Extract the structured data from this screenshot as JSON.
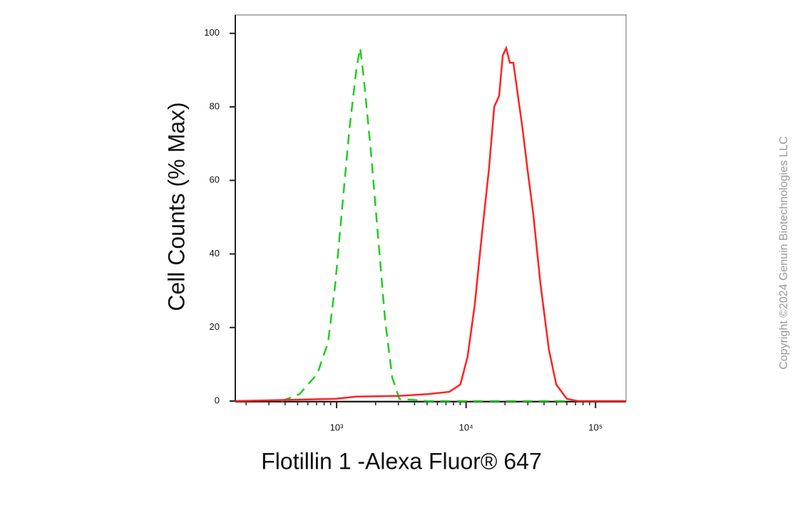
{
  "chart_data": {
    "type": "line",
    "x_label": "Flotillin 1 -Alexa Fluor® 647",
    "y_label": "Cell Counts (% Max)",
    "copyright": "Copyright ©2024 Genuin Biotechnologies LLC",
    "xscale": "log",
    "xlim": [
      165,
      172000
    ],
    "ylim": [
      0,
      105
    ],
    "xticks": [
      {
        "value": 1000,
        "label": "10³"
      },
      {
        "value": 10000,
        "label": "10⁴"
      },
      {
        "value": 100000,
        "label": "10⁵"
      }
    ],
    "xminorticks": [
      200,
      300,
      400,
      500,
      600,
      700,
      800,
      900,
      2000,
      3000,
      4000,
      5000,
      6000,
      7000,
      8000,
      9000,
      20000,
      30000,
      40000,
      50000,
      60000,
      70000,
      80000,
      90000
    ],
    "yticks": [
      0,
      20,
      40,
      60,
      80,
      100
    ],
    "series": [
      {
        "color": "#22cc22",
        "dashed": true,
        "x": [
          376,
          517,
          710,
          859,
          975,
          1107,
          1256,
          1426,
          1519,
          1619,
          1838,
          2087,
          2370,
          2690,
          3054,
          5060,
          64000
        ],
        "values": [
          0,
          1.9,
          7.4,
          16,
          31.6,
          53,
          74,
          90.7,
          96,
          88,
          68,
          45,
          22,
          6.4,
          0.6,
          0,
          0
        ]
      },
      {
        "color": "#ff2222",
        "dashed": false,
        "x": [
          165,
          975,
          1426,
          3054,
          5060,
          7420,
          9034,
          10260,
          11650,
          13230,
          15020,
          16500,
          18000,
          19200,
          20400,
          21800,
          23200,
          24700,
          27300,
          29800,
          33000,
          37500,
          43600,
          49700,
          60000,
          72700,
          172000
        ],
        "values": [
          0,
          0.6,
          1.2,
          1.4,
          1.9,
          2.5,
          4.5,
          12,
          26,
          45,
          63,
          80,
          83,
          94,
          96,
          92,
          92,
          85,
          74,
          63,
          51,
          32,
          14,
          4.5,
          0.6,
          0,
          0
        ]
      }
    ]
  }
}
